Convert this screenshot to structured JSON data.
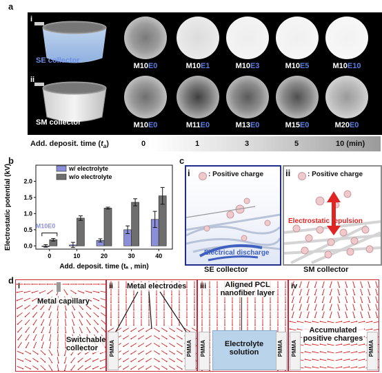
{
  "panel_labels": {
    "a": "a",
    "b": "b",
    "c": "c",
    "d": "d"
  },
  "panel_a": {
    "row1": {
      "roman": "i",
      "collector": "SE collector",
      "samples": [
        {
          "m": "M10",
          "e": "E0"
        },
        {
          "m": "M10",
          "e": "E1"
        },
        {
          "m": "M10",
          "e": "E3"
        },
        {
          "m": "M10",
          "e": "E5"
        },
        {
          "m": "M10",
          "e": "E10"
        }
      ]
    },
    "row2": {
      "roman": "ii",
      "collector": "SM collector",
      "samples": [
        {
          "m": "M10",
          "e": "E0"
        },
        {
          "m": "M11",
          "e": "E0"
        },
        {
          "m": "M13",
          "e": "E0"
        },
        {
          "m": "M15",
          "e": "E0"
        },
        {
          "m": "M20",
          "e": "E0"
        }
      ]
    },
    "time_label": "Add. deposit. time (",
    "time_symbol": "t",
    "time_sub": "a",
    "time_close": ")",
    "times": [
      "0",
      "1",
      "3",
      "5",
      "10 (min)"
    ],
    "colors": {
      "e_label": "#5b7fe0",
      "background": "#000000"
    }
  },
  "panel_c": {
    "left": {
      "roman": "i",
      "legend": ": Positive charge",
      "annotation": "Electrical discharge",
      "caption": "SE collector"
    },
    "right": {
      "roman": "ii",
      "legend": ": Positive charge",
      "annotation": "Electrostatic repulsion",
      "caption": "SM collector"
    },
    "colors": {
      "left_border": "#1f2d8a",
      "right_border": "#8c8c8c",
      "repulsion": "#e02424",
      "discharge": "#4060c0"
    }
  },
  "panel_d": {
    "boxes": [
      {
        "roman": "i",
        "labels": [
          "Metal capillary",
          "Switchable collector"
        ]
      },
      {
        "roman": "ii",
        "labels": [
          "Metal electrodes"
        ],
        "pmma": "PMMA"
      },
      {
        "roman": "iii",
        "labels": [
          "Aligned PCL nanofiber layer",
          "Electrolyte solution"
        ],
        "pmma": "PMMA"
      },
      {
        "roman": "iv",
        "labels": [
          "Accumulated positive charges"
        ],
        "pmma": "PMMA"
      }
    ],
    "colors": {
      "arrows": "#d42020",
      "electrolyte": "#b9d3ea"
    }
  },
  "chart_data": {
    "type": "bar",
    "categories": [
      "0",
      "10",
      "20",
      "30",
      "40"
    ],
    "xlabel": "Add. deposit. time (tₐ , min)",
    "ylabel": "Electrostatic potential (kV)",
    "ylim": [
      -0.1,
      2.5
    ],
    "yticks": [
      "0.0",
      "0.5",
      "1.0",
      "1.5",
      "2.0"
    ],
    "annotation": "M10E0",
    "legend_position": "top-left",
    "series": [
      {
        "name": "w/ electrolyte",
        "color": "#8b8fd8",
        "values": [
          0.0,
          0.03,
          0.17,
          0.5,
          0.82
        ],
        "errors": [
          0.04,
          0.08,
          0.05,
          0.12,
          0.25
        ]
      },
      {
        "name": "w/o electrolyte",
        "color": "#6e6e6e",
        "values": [
          0.19,
          0.86,
          1.17,
          1.35,
          1.55
        ],
        "errors": [
          0.04,
          0.07,
          0.03,
          0.11,
          0.26
        ]
      }
    ]
  }
}
